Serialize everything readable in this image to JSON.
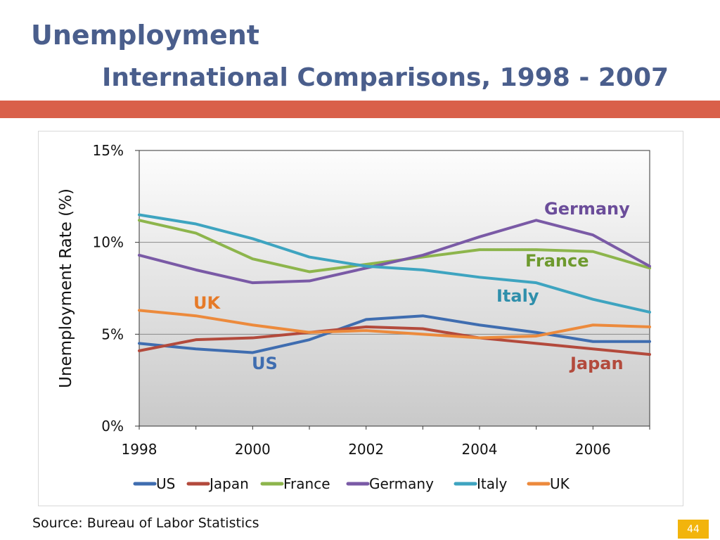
{
  "slide": {
    "title": "Unemployment",
    "subtitle": "International Comparisons, 1998 - 2007",
    "source": "Source: Bureau of Labor Statistics",
    "page_number": "44",
    "accent_color": "#d9604a",
    "title_color": "#4a5e8c",
    "page_badge_color": "#f2b40c"
  },
  "chart_data": {
    "type": "line",
    "title": "",
    "xlabel": "",
    "ylabel": "Unemployment Rate (%)",
    "x": [
      1998,
      1999,
      2000,
      2001,
      2002,
      2003,
      2004,
      2005,
      2006,
      2007
    ],
    "xticks": [
      "1998",
      "2000",
      "2002",
      "2004",
      "2006"
    ],
    "xtick_values": [
      1998,
      2000,
      2002,
      2004,
      2006
    ],
    "yticks": [
      "0%",
      "5%",
      "10%",
      "15%"
    ],
    "ytick_values": [
      0,
      5,
      10,
      15
    ],
    "ylim": [
      0,
      15
    ],
    "grid": true,
    "legend_position": "bottom",
    "series": [
      {
        "name": "US",
        "color": "#3f6db0",
        "label_color": "#3f6db0",
        "values": [
          4.5,
          4.2,
          4.0,
          4.7,
          5.8,
          6.0,
          5.5,
          5.1,
          4.6,
          4.6
        ]
      },
      {
        "name": "Japan",
        "color": "#b34a3c",
        "label_color": "#b34a3c",
        "values": [
          4.1,
          4.7,
          4.8,
          5.1,
          5.4,
          5.3,
          4.8,
          4.5,
          4.2,
          3.9
        ]
      },
      {
        "name": "France",
        "color": "#8db54c",
        "label_color": "#6e9a2e",
        "values": [
          11.2,
          10.5,
          9.1,
          8.4,
          8.8,
          9.2,
          9.6,
          9.6,
          9.5,
          8.6
        ]
      },
      {
        "name": "Germany",
        "color": "#7a5aa6",
        "label_color": "#6b4d9a",
        "values": [
          9.3,
          8.5,
          7.8,
          7.9,
          8.6,
          9.3,
          10.3,
          11.2,
          10.4,
          8.7
        ]
      },
      {
        "name": "Italy",
        "color": "#3ea4c0",
        "label_color": "#2f8fab",
        "values": [
          11.5,
          11.0,
          10.2,
          9.2,
          8.7,
          8.5,
          8.1,
          7.8,
          6.9,
          6.2
        ]
      },
      {
        "name": "UK",
        "color": "#ec8a3c",
        "label_color": "#e67a28",
        "values": [
          6.3,
          6.0,
          5.5,
          5.1,
          5.2,
          5.0,
          4.8,
          4.9,
          5.5,
          5.4
        ]
      }
    ],
    "annotations": [
      {
        "text": "Germany",
        "series": "Germany"
      },
      {
        "text": "France",
        "series": "France"
      },
      {
        "text": "Italy",
        "series": "Italy"
      },
      {
        "text": "UK",
        "series": "UK"
      },
      {
        "text": "US",
        "series": "US"
      },
      {
        "text": "Japan",
        "series": "Japan"
      }
    ]
  }
}
